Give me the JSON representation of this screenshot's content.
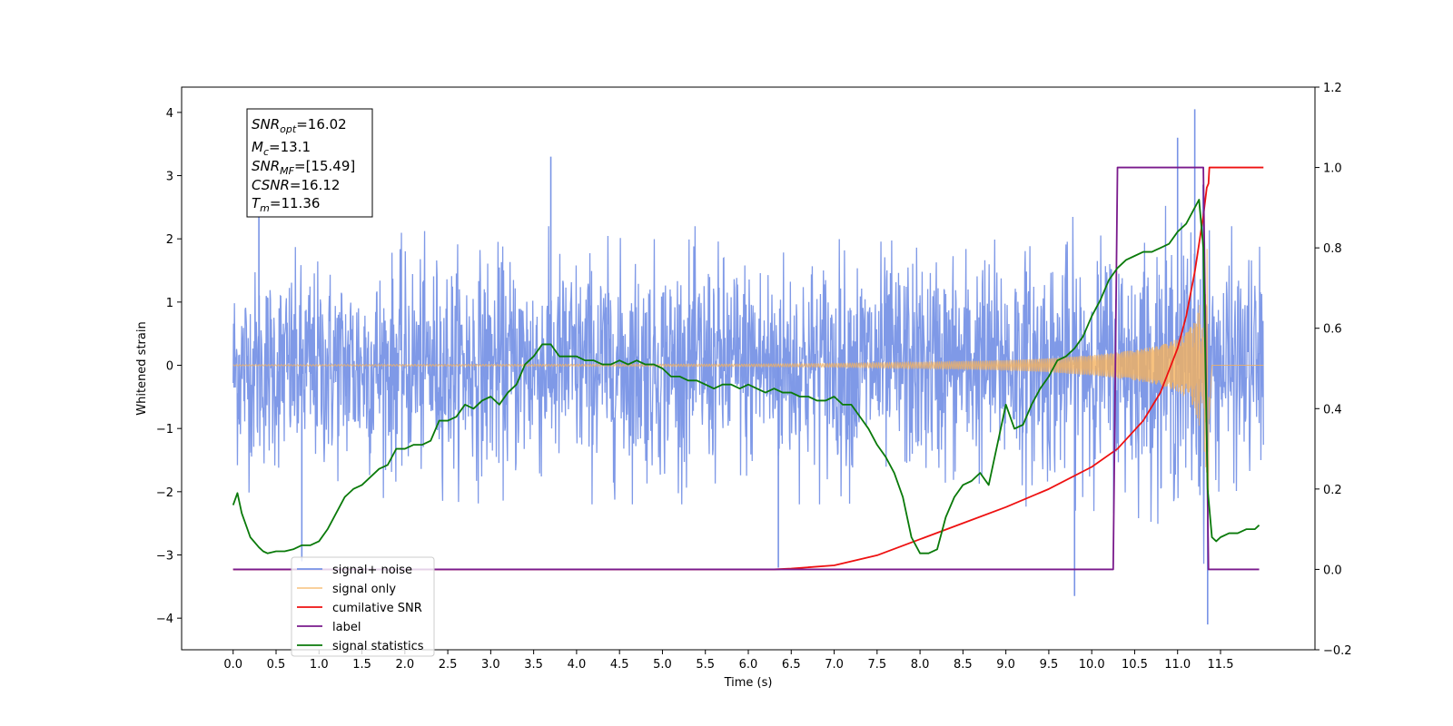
{
  "chart_data": {
    "type": "line",
    "xlabel": "Time (s)",
    "ylabel_left": "Whitened strain",
    "ylabel_right": "",
    "xlim": [
      -0.6,
      12.6
    ],
    "ylim_left": [
      -4.5,
      4.4
    ],
    "ylim_right": [
      -0.2,
      1.2
    ],
    "x_ticks": [
      0.0,
      0.5,
      1.0,
      1.5,
      2.0,
      2.5,
      3.0,
      3.5,
      4.0,
      4.5,
      5.0,
      5.5,
      6.0,
      6.5,
      7.0,
      7.5,
      8.0,
      8.5,
      9.0,
      9.5,
      10.0,
      10.5,
      11.0,
      11.5
    ],
    "x_tick_labels": [
      "0.0",
      "0.5",
      "1.0",
      "1.5",
      "2.0",
      "2.5",
      "3.0",
      "3.5",
      "4.0",
      "4.5",
      "5.0",
      "5.5",
      "6.0",
      "6.5",
      "7.0",
      "7.5",
      "8.0",
      "8.5",
      "9.0",
      "9.5",
      "10.0",
      "10.5",
      "11.0",
      "11.5"
    ],
    "y_ticks_left": [
      -4,
      -3,
      -2,
      -1,
      0,
      1,
      2,
      3,
      4
    ],
    "y_tick_labels_left": [
      "−4",
      "−3",
      "−2",
      "−1",
      "0",
      "1",
      "2",
      "3",
      "4"
    ],
    "y_ticks_right": [
      -0.2,
      0.0,
      0.2,
      0.4,
      0.6,
      0.8,
      1.0,
      1.2
    ],
    "y_tick_labels_right": [
      "−0.2",
      "0.0",
      "0.2",
      "0.4",
      "0.6",
      "0.8",
      "1.0",
      "1.2"
    ],
    "grid": false,
    "legend_position": "lower-left",
    "info_box": {
      "snr_opt": {
        "label": "SNR",
        "sub": "opt",
        "value": "=16.02"
      },
      "mc": {
        "label": "M",
        "sub": "c",
        "value": "=13.1"
      },
      "snr_mf": {
        "label": "SNR",
        "sub": "MF",
        "value": "=[15.49]"
      },
      "csnr": {
        "label": "CSNR",
        "sub": "",
        "value": "=16.12"
      },
      "tm": {
        "label": "T",
        "sub": "m",
        "value": "=11.36"
      }
    },
    "series": [
      {
        "name": "signal+ noise",
        "axis": "left",
        "color": "#7893e6",
        "envelope": {
          "x": [
            0.0,
            1.0,
            2.0,
            3.0,
            4.0,
            5.0,
            6.0,
            7.0,
            8.0,
            9.0,
            9.5,
            10.0,
            10.5,
            11.0,
            11.2,
            11.35,
            11.4,
            12.0
          ],
          "upper": [
            1.9,
            2.0,
            2.1,
            2.2,
            2.2,
            2.2,
            2.2,
            2.2,
            2.2,
            2.3,
            2.3,
            2.4,
            2.4,
            2.6,
            3.0,
            3.2,
            2.2,
            2.2
          ],
          "lower": [
            -2.0,
            -2.1,
            -2.1,
            -2.2,
            -2.2,
            -2.2,
            -2.2,
            -2.2,
            -2.2,
            -2.2,
            -2.3,
            -2.3,
            -2.4,
            -2.6,
            -3.0,
            -3.2,
            -2.2,
            -2.2
          ]
        },
        "peaks": [
          {
            "x": 0.3,
            "y": 2.6
          },
          {
            "x": 3.7,
            "y": 3.3
          },
          {
            "x": 9.8,
            "y": -3.65
          },
          {
            "x": 11.0,
            "y": 3.6
          },
          {
            "x": 11.2,
            "y": 4.05
          },
          {
            "x": 11.35,
            "y": -4.1
          },
          {
            "x": 6.35,
            "y": -3.2
          },
          {
            "x": 0.8,
            "y": -3.1
          }
        ]
      },
      {
        "name": "signal only",
        "axis": "left",
        "color": "#f5b25e",
        "envelope": {
          "x": [
            0.0,
            6.0,
            7.0,
            8.0,
            9.0,
            9.5,
            10.0,
            10.5,
            10.8,
            11.0,
            11.1,
            11.2,
            11.3,
            11.34,
            11.36,
            11.4,
            12.0
          ],
          "amplitude": [
            0.01,
            0.02,
            0.03,
            0.05,
            0.08,
            0.11,
            0.16,
            0.24,
            0.32,
            0.42,
            0.52,
            0.7,
            1.2,
            1.8,
            2.1,
            0.0,
            0.0
          ]
        }
      },
      {
        "name": "cumilative SNR",
        "axis": "right",
        "color": "#ee1111",
        "x": [
          0.0,
          6.3,
          6.5,
          7.0,
          7.5,
          8.0,
          8.5,
          9.0,
          9.5,
          10.0,
          10.3,
          10.6,
          10.8,
          11.0,
          11.1,
          11.2,
          11.3,
          11.34,
          11.36,
          11.37,
          11.5,
          12.0
        ],
        "y": [
          0.0,
          0.0,
          0.002,
          0.01,
          0.035,
          0.075,
          0.115,
          0.155,
          0.2,
          0.255,
          0.3,
          0.37,
          0.44,
          0.55,
          0.63,
          0.74,
          0.88,
          0.95,
          0.96,
          1.0,
          1.0,
          1.0
        ]
      },
      {
        "name": "label",
        "axis": "right",
        "color": "#7a1a8c",
        "x": [
          0.0,
          10.25,
          10.3,
          11.3,
          11.36,
          11.95
        ],
        "y": [
          0.0,
          0.0,
          1.0,
          1.0,
          0.0,
          0.0
        ]
      },
      {
        "name": "signal statistics",
        "axis": "right",
        "color": "#0a7a0a",
        "x": [
          0.0,
          0.05,
          0.1,
          0.15,
          0.2,
          0.3,
          0.35,
          0.4,
          0.5,
          0.6,
          0.7,
          0.8,
          0.9,
          1.0,
          1.1,
          1.2,
          1.3,
          1.4,
          1.5,
          1.6,
          1.7,
          1.8,
          1.9,
          2.0,
          2.1,
          2.2,
          2.3,
          2.4,
          2.5,
          2.6,
          2.7,
          2.8,
          2.9,
          3.0,
          3.1,
          3.2,
          3.3,
          3.4,
          3.5,
          3.6,
          3.7,
          3.8,
          3.9,
          4.0,
          4.1,
          4.2,
          4.3,
          4.4,
          4.5,
          4.6,
          4.7,
          4.8,
          4.9,
          5.0,
          5.1,
          5.2,
          5.3,
          5.4,
          5.5,
          5.6,
          5.7,
          5.8,
          5.9,
          6.0,
          6.1,
          6.2,
          6.3,
          6.4,
          6.5,
          6.6,
          6.7,
          6.8,
          6.9,
          7.0,
          7.1,
          7.2,
          7.3,
          7.4,
          7.5,
          7.6,
          7.7,
          7.8,
          7.9,
          8.0,
          8.1,
          8.2,
          8.3,
          8.4,
          8.5,
          8.6,
          8.7,
          8.8,
          8.9,
          9.0,
          9.1,
          9.2,
          9.3,
          9.4,
          9.5,
          9.6,
          9.7,
          9.8,
          9.9,
          10.0,
          10.1,
          10.2,
          10.3,
          10.4,
          10.5,
          10.6,
          10.7,
          10.8,
          10.9,
          11.0,
          11.1,
          11.2,
          11.25,
          11.3,
          11.35,
          11.4,
          11.45,
          11.5,
          11.6,
          11.7,
          11.8,
          11.9,
          11.95
        ],
        "y": [
          0.16,
          0.19,
          0.14,
          0.11,
          0.08,
          0.055,
          0.045,
          0.04,
          0.045,
          0.045,
          0.05,
          0.06,
          0.06,
          0.07,
          0.1,
          0.14,
          0.18,
          0.2,
          0.21,
          0.23,
          0.25,
          0.26,
          0.3,
          0.3,
          0.31,
          0.31,
          0.32,
          0.37,
          0.37,
          0.38,
          0.41,
          0.4,
          0.42,
          0.43,
          0.41,
          0.44,
          0.46,
          0.51,
          0.53,
          0.56,
          0.56,
          0.53,
          0.53,
          0.53,
          0.52,
          0.52,
          0.51,
          0.51,
          0.52,
          0.51,
          0.52,
          0.51,
          0.51,
          0.5,
          0.48,
          0.48,
          0.47,
          0.47,
          0.46,
          0.45,
          0.46,
          0.46,
          0.45,
          0.46,
          0.45,
          0.44,
          0.45,
          0.44,
          0.44,
          0.43,
          0.43,
          0.42,
          0.42,
          0.43,
          0.41,
          0.41,
          0.38,
          0.35,
          0.31,
          0.28,
          0.24,
          0.18,
          0.08,
          0.04,
          0.04,
          0.05,
          0.13,
          0.18,
          0.21,
          0.22,
          0.24,
          0.21,
          0.31,
          0.41,
          0.35,
          0.36,
          0.41,
          0.45,
          0.48,
          0.52,
          0.53,
          0.55,
          0.58,
          0.63,
          0.67,
          0.72,
          0.75,
          0.77,
          0.78,
          0.79,
          0.79,
          0.8,
          0.81,
          0.84,
          0.86,
          0.9,
          0.92,
          0.8,
          0.2,
          0.08,
          0.07,
          0.08,
          0.09,
          0.09,
          0.1,
          0.1,
          0.11
        ]
      }
    ],
    "legend_entries": [
      "signal+ noise",
      "signal only",
      "cumilative SNR",
      "label",
      "signal statistics"
    ]
  }
}
